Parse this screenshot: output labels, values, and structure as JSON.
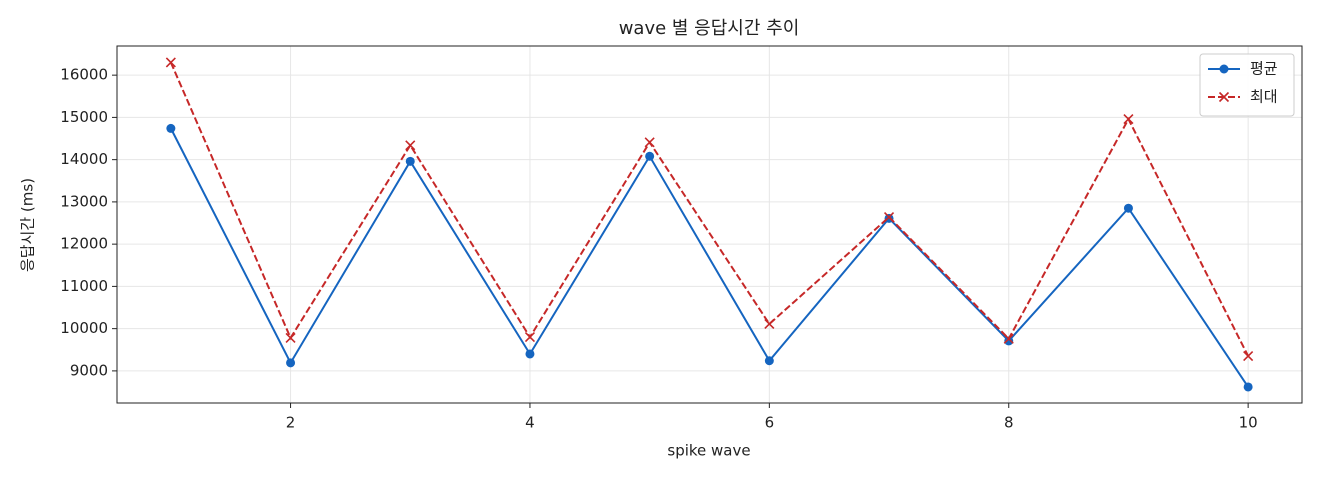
{
  "chart_data": {
    "type": "line",
    "title": "wave 별 응답시간 추이",
    "x_label": "spike wave",
    "y_label": "응답시간 (ms)",
    "x": [
      1,
      2,
      3,
      4,
      5,
      6,
      7,
      8,
      9,
      10
    ],
    "series": [
      {
        "name": "평균",
        "color": "#1565c0",
        "line_style": "solid",
        "marker": "circle",
        "values": [
          14740,
          9190,
          13960,
          9400,
          14080,
          9240,
          12610,
          9710,
          12850,
          8620
        ]
      },
      {
        "name": "최대",
        "color": "#c62828",
        "line_style": "dashed",
        "marker": "x",
        "values": [
          16300,
          9780,
          14340,
          9800,
          14410,
          10110,
          12640,
          9760,
          14960,
          9350
        ]
      }
    ],
    "xlim": [
      0.55,
      10.45
    ],
    "ylim": [
      8240,
      16690
    ],
    "xticks": [
      2,
      4,
      6,
      8,
      10
    ],
    "yticks": [
      9000,
      10000,
      11000,
      12000,
      13000,
      14000,
      15000,
      16000
    ],
    "grid": true,
    "legend": "upper right"
  }
}
